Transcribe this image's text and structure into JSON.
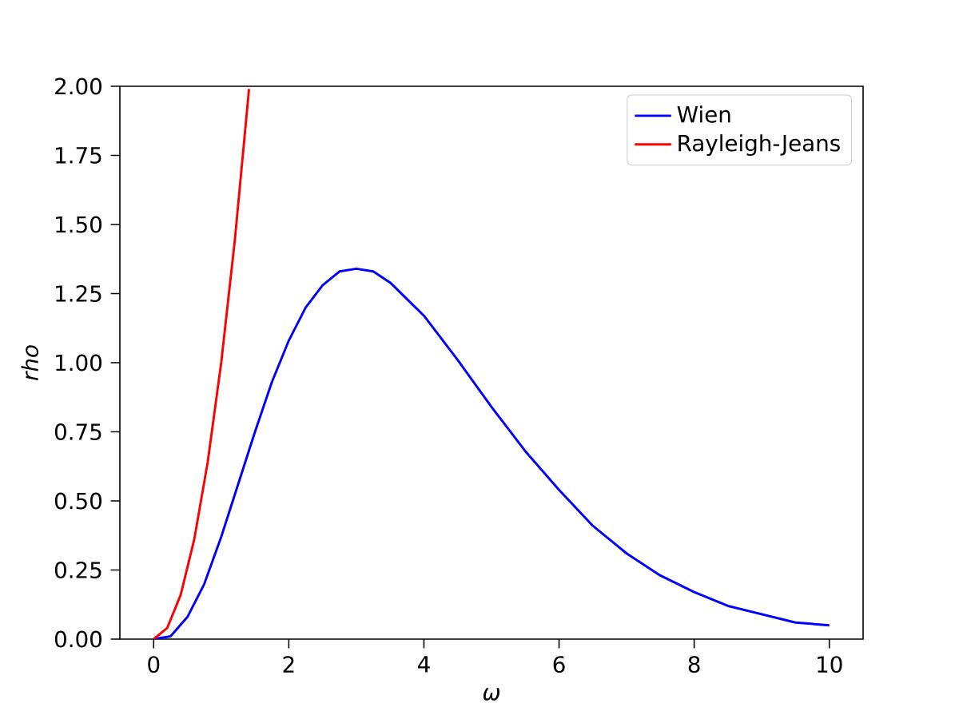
{
  "chart_data": {
    "type": "line",
    "xlabel": "ω",
    "ylabel": "rho",
    "xlim": [
      -0.5,
      10.5
    ],
    "ylim": [
      0,
      2
    ],
    "xticks": [
      0,
      2,
      4,
      6,
      8,
      10
    ],
    "yticks": [
      {
        "value": 0,
        "label": "0.00"
      },
      {
        "value": 0.25,
        "label": "0.25"
      },
      {
        "value": 0.5,
        "label": "0.50"
      },
      {
        "value": 0.75,
        "label": "0.75"
      },
      {
        "value": 1,
        "label": "1.00"
      },
      {
        "value": 1.25,
        "label": "1.25"
      },
      {
        "value": 1.5,
        "label": "1.50"
      },
      {
        "value": 1.75,
        "label": "1.75"
      },
      {
        "value": 2,
        "label": "2.00"
      }
    ],
    "legend": "top right",
    "series": [
      {
        "name": "Wien",
        "color": "#0000ff",
        "x": [
          0,
          0.25,
          0.5,
          0.75,
          1,
          1.25,
          1.5,
          1.75,
          2,
          2.25,
          2.5,
          2.75,
          3,
          3.25,
          3.5,
          4,
          4.5,
          5,
          5.5,
          6,
          6.5,
          7,
          7.5,
          8,
          8.5,
          9,
          9.5,
          10
        ],
        "values": [
          0,
          0.01,
          0.08,
          0.2,
          0.37,
          0.56,
          0.75,
          0.93,
          1.08,
          1.2,
          1.28,
          1.33,
          1.34,
          1.33,
          1.29,
          1.17,
          1.01,
          0.84,
          0.68,
          0.54,
          0.41,
          0.31,
          0.23,
          0.17,
          0.12,
          0.09,
          0.06,
          0.05
        ]
      },
      {
        "name": "Rayleigh-Jeans",
        "color": "#ff0000",
        "x": [
          0,
          0.2,
          0.4,
          0.6,
          0.8,
          1,
          1.2,
          1.4,
          1.41
        ],
        "values": [
          0,
          0.04,
          0.16,
          0.36,
          0.64,
          1,
          1.44,
          1.96,
          1.99
        ]
      }
    ]
  }
}
